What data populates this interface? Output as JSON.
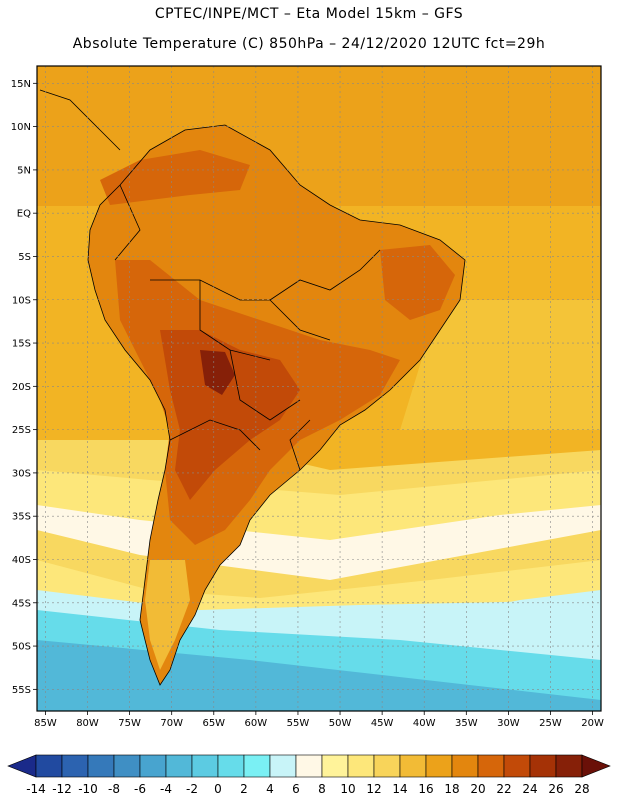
{
  "header": {
    "line1": "CPTEC/INPE/MCT –  Eta Model 15km – GFS",
    "line2": "Absolute Temperature (C) 850hPa – 24/12/2020 12UTC fct=29h"
  },
  "map": {
    "lat_labels": [
      "15N",
      "10N",
      "5N",
      "EQ",
      "5S",
      "10S",
      "15S",
      "20S",
      "25S",
      "30S",
      "35S",
      "40S",
      "45S",
      "50S",
      "55S"
    ],
    "lon_labels": [
      "85W",
      "80W",
      "75W",
      "70W",
      "65W",
      "60W",
      "55W",
      "50W",
      "45W",
      "40W",
      "35W",
      "30W",
      "25W",
      "20W"
    ],
    "lat_values": [
      15,
      10,
      5,
      0,
      -5,
      -10,
      -15,
      -20,
      -25,
      -30,
      -35,
      -40,
      -45,
      -50,
      -55
    ],
    "lon_values": [
      -85,
      -80,
      -75,
      -70,
      -65,
      -60,
      -55,
      -50,
      -45,
      -40,
      -35,
      -30,
      -25,
      -20
    ],
    "lon_range": [
      -86,
      -19
    ],
    "lat_range": [
      -57.5,
      17
    ],
    "colorbar": {
      "labels": [
        "-14",
        "-12",
        "-10",
        "-8",
        "-6",
        "-4",
        "-2",
        "0",
        "2",
        "4",
        "6",
        "8",
        "10",
        "12",
        "14",
        "16",
        "18",
        "20",
        "22",
        "24",
        "26",
        "28"
      ],
      "colors": [
        "#1a2a8a",
        "#214aa0",
        "#2c63b0",
        "#3579ba",
        "#3f8fc4",
        "#48a4cf",
        "#52b8d8",
        "#5ccbe2",
        "#66dcea",
        "#7af0f4",
        "#c8f4f8",
        "#fff8e6",
        "#fff39a",
        "#fde77a",
        "#f8d45a",
        "#f2bb36",
        "#eca21a",
        "#e3860e",
        "#d6660a",
        "#c24a08",
        "#a53206",
        "#862008",
        "#6a1008"
      ]
    },
    "region_colors": {
      "ocean_warm": "#f2b424",
      "ocean_north": "#eca21a",
      "mid": "#f4c438",
      "south_band": "#f8d860",
      "pale": "#fde77a",
      "cream": "#fff8e6",
      "cyan_light": "#c8f4f8",
      "cyan": "#66dcea",
      "cyan_dark": "#52b8d8",
      "land_warm": "#e3860e",
      "land_hot": "#d6660a",
      "land_hotter": "#c24a08",
      "land_hottest": "#862008"
    }
  }
}
